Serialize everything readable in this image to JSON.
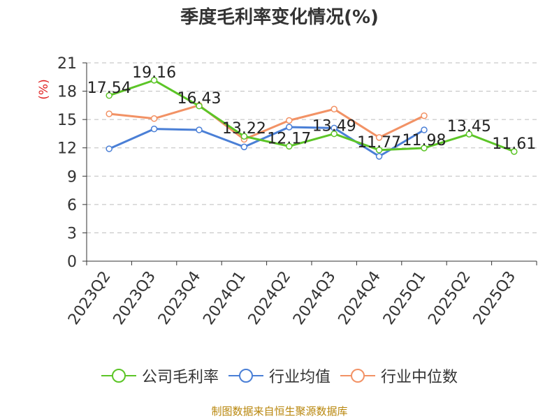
{
  "chart_data": {
    "type": "line",
    "title": "季度毛利率变化情况(%)",
    "ylabel": "(%)",
    "xlabel": "",
    "ylim": [
      0,
      21
    ],
    "yticks": [
      0,
      3,
      6,
      9,
      12,
      15,
      18,
      21
    ],
    "grid": true,
    "legend_position": "bottom",
    "categories": [
      "2023Q2",
      "2023Q3",
      "2023Q4",
      "2024Q1",
      "2024Q2",
      "2024Q3",
      "2024Q4",
      "2025Q1",
      "2025Q2",
      "2025Q3"
    ],
    "series": [
      {
        "name": "公司毛利率",
        "color": "#5cc527",
        "labels": true,
        "values": [
          17.54,
          19.16,
          16.43,
          13.22,
          12.17,
          13.49,
          11.77,
          11.98,
          13.45,
          11.61
        ]
      },
      {
        "name": "行业均值",
        "color": "#4a7fd6",
        "labels": false,
        "values": [
          11.9,
          14.0,
          13.9,
          12.1,
          14.2,
          14.1,
          11.1,
          13.9,
          null,
          null
        ]
      },
      {
        "name": "行业中位数",
        "color": "#f29265",
        "labels": false,
        "values": [
          15.6,
          15.1,
          16.5,
          12.9,
          14.9,
          16.1,
          13.1,
          15.4,
          null,
          null
        ]
      }
    ]
  },
  "footer": {
    "source": "制图数据来自恒生聚源数据库"
  }
}
